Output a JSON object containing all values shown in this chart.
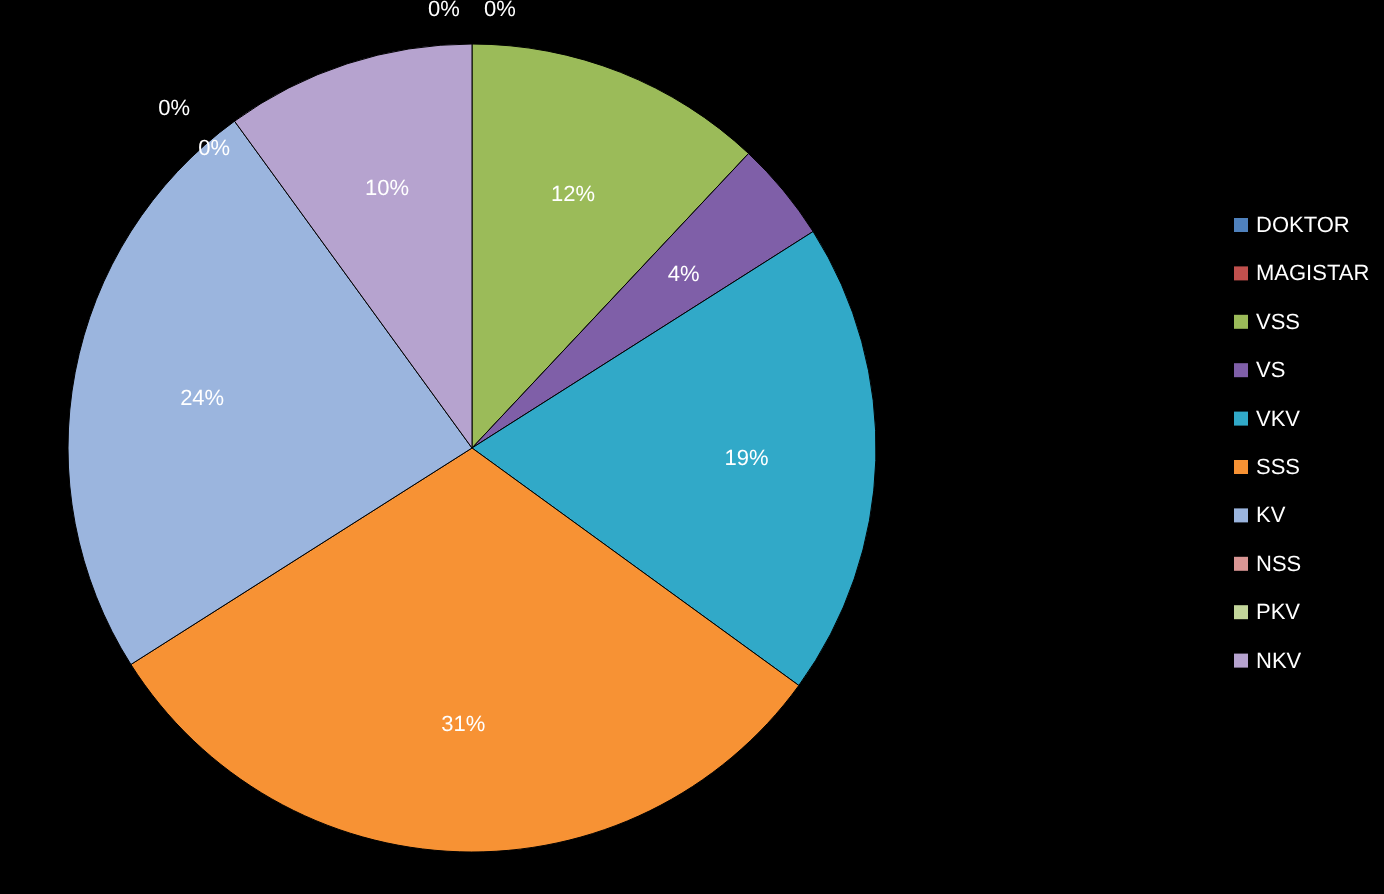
{
  "chart_data": {
    "type": "pie",
    "categories": [
      "DOKTOR",
      "MAGISTAR",
      "VSS",
      "VS",
      "VKV",
      "SSS",
      "KV",
      "NSS",
      "PKV",
      "NKV"
    ],
    "values": [
      0,
      0,
      12,
      4,
      19,
      31,
      24,
      0,
      0,
      10
    ],
    "colors": [
      "#4f81bd",
      "#c0504d",
      "#9bbb59",
      "#7f5fa8",
      "#31a9c8",
      "#f79234",
      "#9bb5de",
      "#d99694",
      "#c3d69b",
      "#b6a3cf"
    ],
    "value_labels": [
      "0%",
      "0%",
      "12%",
      "4%",
      "19%",
      "31%",
      "24%",
      "0%",
      "0%",
      "10%"
    ],
    "legend": "right"
  }
}
